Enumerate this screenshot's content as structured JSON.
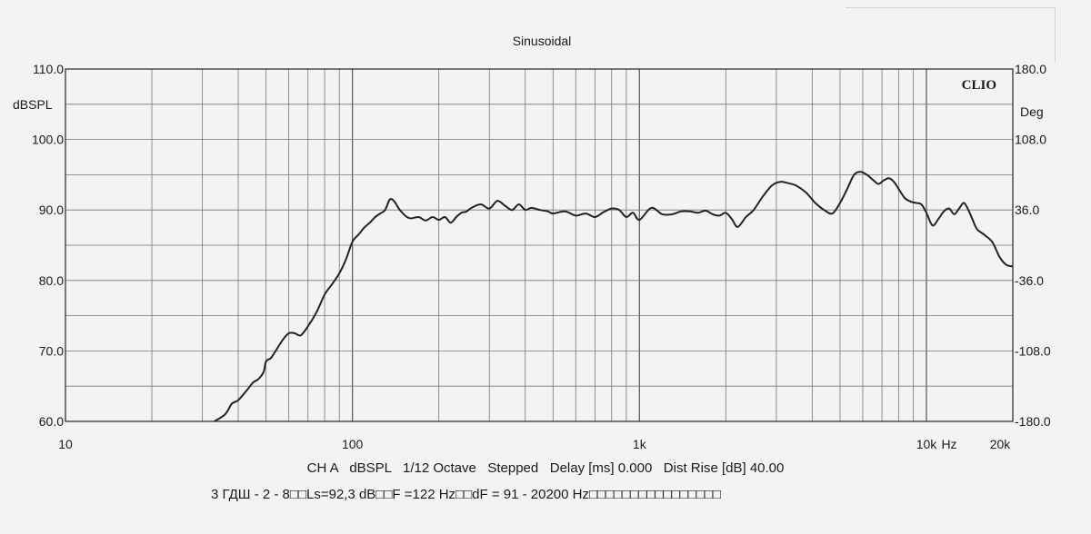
{
  "chart_data": {
    "type": "line",
    "title": "Sinusoidal",
    "brand": "CLIO",
    "x_scale": "log",
    "xlim": [
      10,
      20000
    ],
    "x_tick_labels": [
      {
        "value": 10,
        "label": "10"
      },
      {
        "value": 100,
        "label": "100"
      },
      {
        "value": 1000,
        "label": "1k"
      },
      {
        "value": 10000,
        "label": "10k"
      },
      {
        "value": 20000,
        "label": "20k"
      }
    ],
    "x_unit_label": "Hz",
    "y_left": {
      "label": "dBSPL",
      "lim": [
        60,
        110
      ],
      "ticks": [
        "110.0",
        "100.0",
        "90.0",
        "80.0",
        "70.0",
        "60.0"
      ]
    },
    "y_right": {
      "label": "Deg",
      "lim": [
        -180,
        180
      ],
      "ticks": [
        "180.0",
        "108.0",
        "36.0",
        "-36.0",
        "-108.0",
        "-180.0"
      ]
    },
    "grid": true,
    "series": [
      {
        "color": "#222222",
        "x": [
          33,
          36,
          38,
          40,
          43,
          45,
          47,
          49,
          50,
          52,
          54,
          57,
          60,
          63,
          66,
          70,
          75,
          80,
          85,
          90,
          95,
          100,
          105,
          110,
          115,
          120,
          125,
          130,
          135,
          140,
          145,
          150,
          155,
          160,
          170,
          180,
          190,
          200,
          210,
          220,
          230,
          240,
          250,
          260,
          280,
          300,
          320,
          340,
          360,
          380,
          400,
          420,
          450,
          480,
          500,
          550,
          600,
          650,
          700,
          750,
          800,
          850,
          900,
          950,
          1000,
          1100,
          1200,
          1300,
          1400,
          1500,
          1600,
          1700,
          1800,
          1900,
          2000,
          2100,
          2200,
          2350,
          2500,
          2700,
          2900,
          3100,
          3300,
          3500,
          3800,
          4100,
          4400,
          4700,
          5000,
          5300,
          5600,
          5900,
          6200,
          6500,
          6800,
          7100,
          7400,
          7700,
          8000,
          8400,
          8800,
          9200,
          9600,
          10000,
          10500,
          11000,
          11500,
          12000,
          12500,
          13000,
          13500,
          14000,
          14500,
          15000,
          16000,
          17000,
          18000,
          19000,
          20000
        ],
        "y": [
          60,
          61,
          62.5,
          63,
          64.5,
          65.5,
          66,
          67,
          68.5,
          69,
          70,
          71.5,
          72.5,
          72.5,
          72.2,
          73.5,
          75.5,
          78,
          79.5,
          81,
          83,
          85.5,
          86.5,
          87.5,
          88.2,
          89,
          89.5,
          90,
          91.5,
          91.2,
          90.2,
          89.5,
          89.0,
          88.8,
          89.0,
          88.5,
          89.0,
          88.6,
          89.0,
          88.2,
          89.0,
          89.6,
          89.8,
          90.3,
          90.8,
          90.2,
          91.3,
          90.6,
          90.0,
          90.8,
          90.0,
          90.3,
          90.0,
          89.8,
          89.5,
          89.8,
          89.2,
          89.5,
          89.0,
          89.7,
          90.2,
          90.0,
          89.0,
          89.6,
          88.6,
          90.3,
          89.4,
          89.4,
          89.8,
          89.8,
          89.6,
          89.9,
          89.4,
          89.2,
          89.6,
          88.7,
          87.6,
          89.0,
          90.0,
          92.0,
          93.5,
          94.0,
          93.8,
          93.5,
          92.5,
          91.0,
          90.0,
          89.5,
          91.0,
          93.0,
          95.0,
          95.4,
          95.0,
          94.3,
          93.7,
          94.2,
          94.5,
          94.0,
          93.0,
          91.7,
          91.2,
          91.0,
          90.8,
          89.6,
          87.8,
          88.7,
          89.8,
          90.2,
          89.4,
          90.2,
          91.0,
          90.0,
          88.6,
          87.3,
          86.4,
          85.4,
          83.3,
          82.2,
          82.0
        ]
      }
    ]
  },
  "footer": {
    "line1": "CH A   dBSPL   1/12 Octave   Stepped   Delay [ms] 0.000   Dist Rise [dB] 40.00",
    "line2": "3 ГДШ - 2 - 8□□Ls=92,3 dB□□F =122 Hz□□dF = 91 - 20200 Hz□□□□□□□□□□□□□□□□"
  }
}
